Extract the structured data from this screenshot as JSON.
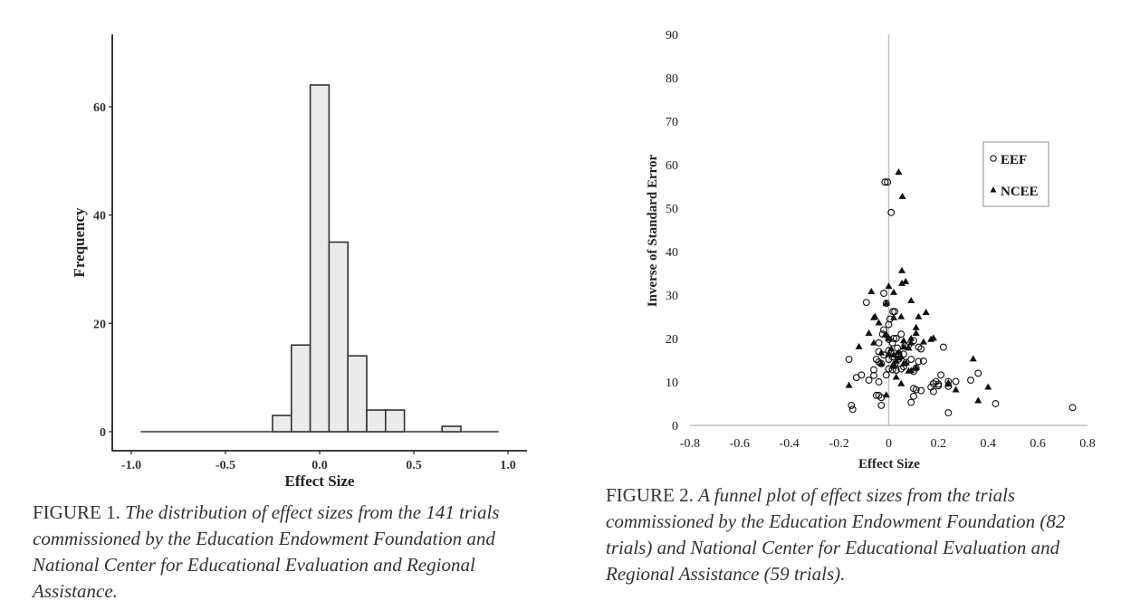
{
  "chart_data": [
    {
      "type": "bar",
      "subtype": "histogram",
      "xlabel": "Effect Size",
      "ylabel": "Frequency",
      "xlim": [
        -1.1,
        1.1
      ],
      "ylim": [
        -3.5,
        73
      ],
      "x_ticks": [
        -1.0,
        -0.5,
        0.0,
        0.5,
        1.0
      ],
      "x_tick_labels": [
        "-1.0",
        "-0.5",
        "0.0",
        "0.5",
        "1.0"
      ],
      "y_ticks": [
        0,
        20,
        40,
        60
      ],
      "y_tick_labels": [
        "0",
        "20",
        "40",
        "60"
      ],
      "bin_width": 0.1,
      "baseline_range": [
        -0.95,
        0.95
      ],
      "bins": [
        {
          "center": -0.2,
          "count": 3
        },
        {
          "center": -0.1,
          "count": 16
        },
        {
          "center": 0.0,
          "count": 64
        },
        {
          "center": 0.1,
          "count": 35
        },
        {
          "center": 0.2,
          "count": 14
        },
        {
          "center": 0.3,
          "count": 4
        },
        {
          "center": 0.4,
          "count": 4
        },
        {
          "center": 0.7,
          "count": 1
        }
      ],
      "grid": false,
      "colors": {
        "fill": "#ebebeb",
        "stroke": "#333333"
      }
    },
    {
      "type": "scatter",
      "subtype": "funnel",
      "xlabel": "Effect Size",
      "ylabel": "Inverse of Standard Error",
      "xlim": [
        -0.8,
        0.8
      ],
      "ylim": [
        0,
        90
      ],
      "x_ticks": [
        -0.8,
        -0.6,
        -0.4,
        -0.2,
        0,
        0.2,
        0.4,
        0.6,
        0.8
      ],
      "x_tick_labels": [
        "-0.8",
        "-0.6",
        "-0.4",
        "-0.2",
        "0",
        "0.2",
        "0.4",
        "0.6",
        "0.8"
      ],
      "y_ticks": [
        0,
        10,
        20,
        30,
        40,
        50,
        60,
        70,
        80,
        90
      ],
      "y_tick_labels": [
        "0",
        "10",
        "20",
        "30",
        "40",
        "50",
        "60",
        "70",
        "80",
        "90"
      ],
      "reference_line_x": 0,
      "legend": {
        "position": "right",
        "entries": [
          "EEF",
          "NCEE"
        ]
      },
      "grid": false,
      "series": [
        {
          "name": "EEF",
          "marker": "open-circle",
          "points": [
            [
              -0.015,
              56
            ],
            [
              -0.005,
              56
            ],
            [
              0.01,
              49
            ],
            [
              -0.02,
              30.4
            ],
            [
              -0.09,
              28.3
            ],
            [
              -0.01,
              28.1
            ],
            [
              0.017,
              26.2
            ],
            [
              0.024,
              26.2
            ],
            [
              0.005,
              24.5
            ],
            [
              0.0,
              23.2
            ],
            [
              -0.02,
              22
            ],
            [
              -0.025,
              21
            ],
            [
              0.05,
              21
            ],
            [
              -0.04,
              19
            ],
            [
              0.02,
              20
            ],
            [
              0.03,
              20
            ],
            [
              0.015,
              19
            ],
            [
              0.1,
              19.5
            ],
            [
              0.12,
              18
            ],
            [
              0.22,
              18
            ],
            [
              0.065,
              18.3
            ],
            [
              0.0,
              17.2
            ],
            [
              -0.04,
              17
            ],
            [
              0.04,
              16.5
            ],
            [
              0.06,
              16.4
            ],
            [
              -0.16,
              15.2
            ],
            [
              -0.05,
              15.2
            ],
            [
              0.0,
              15.2
            ],
            [
              0.04,
              15.3
            ],
            [
              0.09,
              15.2
            ],
            [
              -0.04,
              14.6
            ],
            [
              0.12,
              14.7
            ],
            [
              0.14,
              14.8
            ],
            [
              0.025,
              14
            ],
            [
              -0.03,
              14.2
            ],
            [
              0.06,
              13.5
            ],
            [
              0.0,
              13
            ],
            [
              0.015,
              12.8
            ],
            [
              0.03,
              12.7
            ],
            [
              0.05,
              13
            ],
            [
              0.1,
              12.4
            ],
            [
              -0.06,
              12.8
            ],
            [
              -0.06,
              11.5
            ],
            [
              -0.01,
              11.6
            ],
            [
              -0.11,
              11.6
            ],
            [
              -0.13,
              11
            ],
            [
              0.21,
              11.6
            ],
            [
              0.36,
              12
            ],
            [
              -0.08,
              10.4
            ],
            [
              -0.04,
              10
            ],
            [
              0.19,
              10.1
            ],
            [
              0.24,
              10.1
            ],
            [
              0.27,
              10.1
            ],
            [
              0.33,
              10.4
            ],
            [
              0.2,
              9.5
            ],
            [
              0.18,
              9.6
            ],
            [
              0.24,
              9
            ],
            [
              0.17,
              8.8
            ],
            [
              0.1,
              8.5
            ],
            [
              0.11,
              8.2
            ],
            [
              0.13,
              8
            ],
            [
              0.18,
              7.8
            ],
            [
              -0.05,
              6.9
            ],
            [
              -0.04,
              6.9
            ],
            [
              -0.03,
              6.4
            ],
            [
              0.1,
              6.7
            ],
            [
              0.09,
              5.3
            ],
            [
              -0.03,
              4.6
            ],
            [
              -0.15,
              4.6
            ],
            [
              -0.145,
              3.7
            ],
            [
              0.43,
              5
            ],
            [
              0.74,
              4.1
            ],
            [
              0.24,
              2.9
            ],
            [
              0.08,
              18.5
            ],
            [
              0.035,
              17.8
            ],
            [
              0.0,
              19.8
            ],
            [
              0.11,
              13.2
            ],
            [
              0.07,
              14.5
            ],
            [
              -0.02,
              16.2
            ],
            [
              0.015,
              15.8
            ],
            [
              0.2,
              9.1
            ],
            [
              0.13,
              17.6
            ]
          ]
        },
        {
          "name": "NCEE",
          "marker": "filled-triangle",
          "points": [
            [
              0.04,
              58.3
            ],
            [
              0.055,
              52.7
            ],
            [
              0.053,
              35.6
            ],
            [
              0.053,
              32.7
            ],
            [
              0.068,
              33.1
            ],
            [
              0.0,
              32
            ],
            [
              -0.07,
              30.8
            ],
            [
              0.02,
              30.6
            ],
            [
              -0.01,
              28.1
            ],
            [
              0.09,
              28.7
            ],
            [
              -0.06,
              24.8
            ],
            [
              -0.055,
              25
            ],
            [
              -0.04,
              23.6
            ],
            [
              0.05,
              25
            ],
            [
              0.12,
              25
            ],
            [
              0.15,
              26
            ],
            [
              0.02,
              24.8
            ],
            [
              0.11,
              22.5
            ],
            [
              -0.08,
              21.2
            ],
            [
              -0.01,
              21
            ],
            [
              0.11,
              21.2
            ],
            [
              0.0,
              20
            ],
            [
              0.09,
              20
            ],
            [
              0.17,
              19.8
            ],
            [
              0.18,
              20.1
            ],
            [
              -0.06,
              19
            ],
            [
              0.14,
              19.2
            ],
            [
              0.09,
              19
            ],
            [
              0.06,
              18
            ],
            [
              -0.12,
              18.1
            ],
            [
              0.08,
              17.8
            ],
            [
              -0.03,
              16.7
            ],
            [
              0.0,
              16.5
            ],
            [
              0.02,
              16.2
            ],
            [
              0.04,
              15.5
            ],
            [
              0.05,
              15.8
            ],
            [
              0.03,
              14.8
            ],
            [
              0.02,
              14.2
            ],
            [
              0.06,
              14.2
            ],
            [
              0.07,
              14.4
            ],
            [
              -0.03,
              14.2
            ],
            [
              0.11,
              13.3
            ],
            [
              0.08,
              12.5
            ],
            [
              0.09,
              12.6
            ],
            [
              0.02,
              13.6
            ],
            [
              0.03,
              11.1
            ],
            [
              0.34,
              15.3
            ],
            [
              -0.16,
              9.2
            ],
            [
              0.05,
              9.6
            ],
            [
              0.24,
              9.8
            ],
            [
              0.24,
              9.5
            ],
            [
              0.27,
              8.2
            ],
            [
              0.4,
              8.8
            ],
            [
              0.36,
              5.7
            ],
            [
              -0.01,
              7
            ],
            [
              0.04,
              16.8
            ],
            [
              -0.015,
              20.8
            ],
            [
              0.06,
              19.5
            ],
            [
              0.01,
              17.6
            ]
          ]
        }
      ],
      "colors": {
        "marker": "#111111",
        "axis": "#bdbdbd",
        "legend_border": "#a0a0a0"
      }
    }
  ],
  "captions": {
    "figure1": {
      "label": "FIGURE 1.",
      "text": "The distribution of effect sizes from the 141 trials commissioned by the Education Endowment Foundation and National Center for Educational Evaluation and Regional Assistance."
    },
    "figure2": {
      "label": "FIGURE 2.",
      "text": "A funnel plot of effect sizes from the trials commissioned by the Education Endowment Foundation (82 trials) and National Center for Educational Evaluation and Regional Assistance (59 trials)."
    }
  }
}
